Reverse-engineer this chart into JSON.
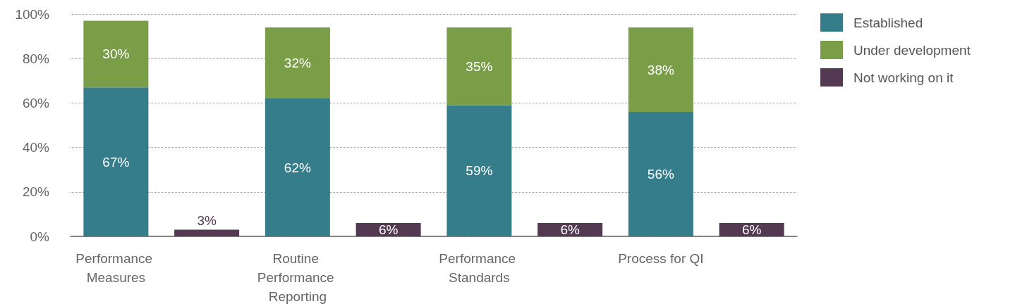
{
  "chart_data": {
    "type": "bar",
    "stacked": true,
    "categories": [
      "Performance Measures",
      null,
      "Routine Performance Reporting",
      null,
      "Performance Standards",
      null,
      "Process for QI",
      null
    ],
    "series": [
      {
        "name": "Established",
        "color": "#367d8c",
        "values": [
          67,
          null,
          62,
          null,
          59,
          null,
          56,
          null
        ],
        "value_labels": [
          "67%",
          null,
          "62%",
          null,
          "59%",
          null,
          "56%",
          null
        ]
      },
      {
        "name": "Under development",
        "color": "#7a9e48",
        "values": [
          30,
          null,
          32,
          null,
          35,
          null,
          38,
          null
        ],
        "value_labels": [
          "30%",
          null,
          "32%",
          null,
          "35%",
          null,
          "38%",
          null
        ]
      },
      {
        "name": "Not working on it",
        "color": "#533a52",
        "values": [
          null,
          3,
          null,
          6,
          null,
          6,
          null,
          6
        ],
        "value_labels": [
          null,
          "3%",
          null,
          "6%",
          null,
          "6%",
          null,
          "6%"
        ]
      }
    ],
    "ylim": [
      0,
      100
    ],
    "yticks": [
      {
        "value": 0,
        "label": "0%"
      },
      {
        "value": 20,
        "label": "20%"
      },
      {
        "value": 40,
        "label": "40%"
      },
      {
        "value": 60,
        "label": "60%"
      },
      {
        "value": 80,
        "label": "80%"
      },
      {
        "value": 100,
        "label": "100%"
      }
    ],
    "grid": "y",
    "legend": "top right"
  }
}
